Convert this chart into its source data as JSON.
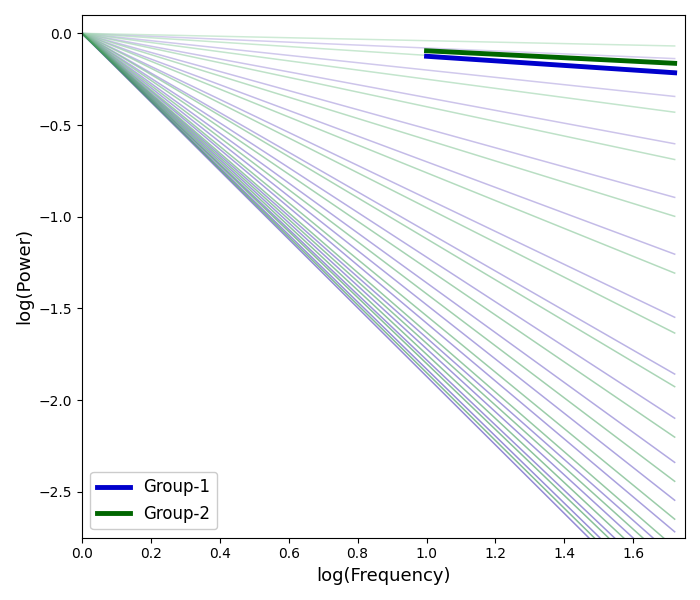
{
  "title": "",
  "xlabel": "log(Frequency)",
  "ylabel": "log(Power)",
  "xlim": [
    0,
    1.75
  ],
  "ylim": [
    -2.75,
    0.1
  ],
  "x_start": 0.0,
  "x_end": 1.72,
  "mean_x_start": 1.0,
  "group1_slopes": [
    -0.08,
    -0.2,
    -0.35,
    -0.52,
    -0.7,
    -0.9,
    -1.08,
    -1.22,
    -1.36,
    -1.48,
    -1.58,
    -1.66,
    -1.72,
    -1.78,
    -1.83,
    -1.87
  ],
  "group2_slopes": [
    -0.04,
    -0.12,
    -0.25,
    -0.4,
    -0.58,
    -0.76,
    -0.95,
    -1.12,
    -1.28,
    -1.42,
    -1.54,
    -1.63,
    -1.69,
    -1.75,
    -1.8,
    -1.85
  ],
  "group1_mean_slope": -0.125,
  "group2_mean_slope": -0.095,
  "group1_mean_color": "#0000cc",
  "group2_mean_color": "#006600",
  "legend_labels": [
    "Group-1",
    "Group-2"
  ],
  "line_alpha": 0.65,
  "mean_linewidth": 3.5,
  "indiv_linewidth": 1.1,
  "num_group1": 16,
  "num_group2": 16
}
